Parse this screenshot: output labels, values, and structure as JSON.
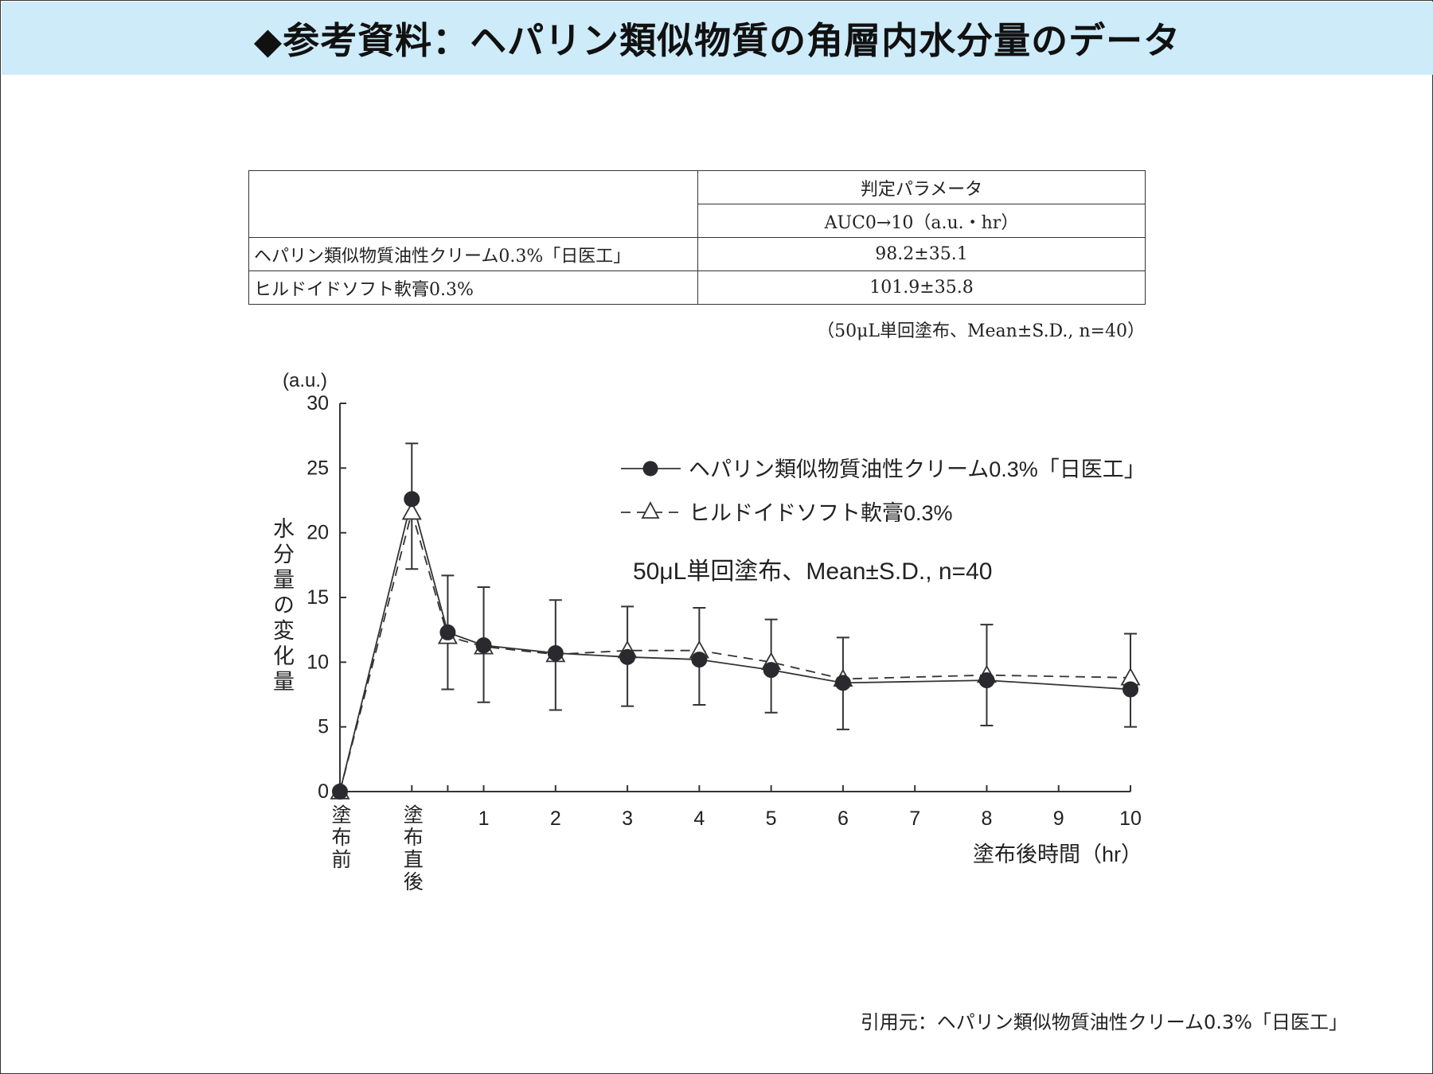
{
  "header": {
    "title": "◆参考資料：ヘパリン類似物質の角層内水分量のデータ"
  },
  "table": {
    "group_header": "判定パラメータ",
    "column_header": "AUC0→10（a.u.・hr）",
    "rows": [
      {
        "label": "ヘパリン類似物質油性クリーム0.3%「日医工」",
        "value": "98.2±35.1"
      },
      {
        "label": "ヒルドイドソフト軟膏0.3%",
        "value": "101.9±35.8"
      }
    ],
    "note": "（50μL単回塗布、Mean±S.D., n=40）"
  },
  "citation": "引用元：ヘパリン類似物質油性クリーム0.3%「日医工」",
  "colors": {
    "title_bar": "#cdebf9",
    "line": "#333333",
    "marker": "#2a2a2e"
  },
  "chart_data": {
    "type": "line",
    "y_unit_label": "(a.u.)",
    "ylabel": "水分量の変化量",
    "xlabel": "塗布後時間（hr）",
    "ylim": [
      0,
      30
    ],
    "yticks": [
      0,
      5,
      10,
      15,
      20,
      25,
      30
    ],
    "xlim": [
      -1,
      10
    ],
    "xticks": [
      {
        "x": 1,
        "label": "1"
      },
      {
        "x": 2,
        "label": "2"
      },
      {
        "x": 3,
        "label": "3"
      },
      {
        "x": 4,
        "label": "4"
      },
      {
        "x": 5,
        "label": "5"
      },
      {
        "x": 6,
        "label": "6"
      },
      {
        "x": 7,
        "label": "7"
      },
      {
        "x": 8,
        "label": "8"
      },
      {
        "x": 9,
        "label": "9"
      },
      {
        "x": 10,
        "label": "10"
      }
    ],
    "special_ticks": [
      {
        "x": -1,
        "label": "塗布前"
      },
      {
        "x": 0,
        "label": "塗布直後"
      }
    ],
    "annotation": "50μL単回塗布、Mean±S.D., n=40",
    "legend_position": "top-right",
    "series": [
      {
        "name": "ヘパリン類似物質油性クリーム0.3%「日医工」",
        "style": "solid",
        "marker": "filled-circle",
        "x": [
          -1,
          0,
          0.5,
          1,
          2,
          3,
          4,
          5,
          6,
          8,
          10
        ],
        "y": [
          0,
          22.6,
          12.3,
          11.3,
          10.7,
          10.4,
          10.2,
          9.4,
          8.4,
          8.6,
          7.9
        ],
        "err_low": [
          0,
          17.2,
          7.9,
          6.9,
          6.3,
          6.6,
          6.7,
          6.1,
          4.8,
          5.1,
          5.0
        ],
        "err_high": [
          0,
          26.9,
          16.7,
          15.8,
          14.8,
          14.3,
          14.2,
          13.3,
          11.9,
          12.9,
          12.2
        ]
      },
      {
        "name": "ヒルドイドソフト軟膏0.3%",
        "style": "dashed",
        "marker": "open-triangle",
        "x": [
          -1,
          0,
          0.5,
          1,
          2,
          3,
          4,
          5,
          6,
          8,
          10
        ],
        "y": [
          0,
          21.6,
          12.0,
          11.2,
          10.6,
          10.9,
          10.9,
          10.0,
          8.7,
          9.0,
          8.8
        ]
      }
    ]
  }
}
